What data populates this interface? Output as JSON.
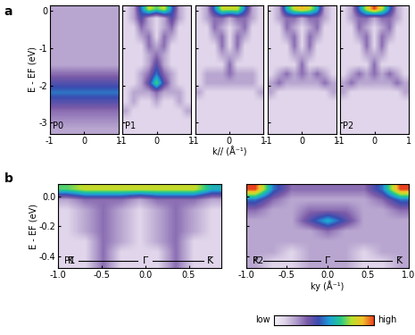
{
  "chart_data": [
    {
      "type": "heatmap",
      "panel": "a",
      "annotation": "P0",
      "ylabel": "E - EF (eV)",
      "xlim": [
        -1,
        1
      ],
      "ylim": [
        -3.3,
        0.15
      ],
      "xticks": [
        -1,
        0,
        1
      ],
      "yticks": [
        -3,
        -2,
        -1,
        0
      ],
      "cells": [
        [
          2,
          2,
          2,
          2,
          2,
          2,
          2,
          2,
          2
        ],
        [
          2,
          2,
          2,
          2,
          2,
          2,
          2,
          2,
          2
        ],
        [
          2,
          2,
          2,
          2,
          2,
          2,
          2,
          2,
          2
        ],
        [
          2,
          2,
          2,
          2,
          2,
          2,
          2,
          2,
          2
        ],
        [
          2,
          2,
          2,
          2,
          2,
          2,
          2,
          2,
          2
        ],
        [
          2,
          2,
          2,
          2,
          2,
          2,
          2,
          2,
          2
        ],
        [
          2,
          2,
          2,
          2,
          2,
          2,
          2,
          2,
          2
        ],
        [
          3,
          3,
          3,
          3,
          3,
          3,
          3,
          3,
          3
        ],
        [
          4,
          4,
          4,
          4,
          4,
          4,
          4,
          4,
          4
        ],
        [
          5,
          5,
          5,
          5,
          5,
          5,
          5,
          5,
          5
        ],
        [
          4,
          4,
          4,
          4,
          4,
          4,
          4,
          4,
          4
        ],
        [
          3,
          3,
          3,
          3,
          3,
          3,
          3,
          3,
          3
        ],
        [
          2.5,
          2.5,
          2.5,
          2.5,
          2.5,
          2.5,
          2.5,
          2.5,
          2.5
        ],
        [
          2,
          2,
          2,
          2,
          2,
          2,
          2,
          2,
          2
        ]
      ]
    },
    {
      "type": "heatmap",
      "panel": "a",
      "annotation": "P1",
      "tick_labels": "x",
      "xlim": [
        -1,
        1
      ],
      "ylim": [
        -3.3,
        0.15
      ],
      "xticks": [
        -1,
        0,
        1
      ],
      "yticks": [
        -3,
        -2,
        -1,
        0
      ],
      "cells": [
        [
          1,
          2,
          5,
          8,
          7,
          8,
          5,
          2,
          1
        ],
        [
          1,
          2,
          4,
          2,
          1,
          2,
          4,
          2,
          1
        ],
        [
          1,
          1,
          3,
          2,
          1,
          2,
          3,
          1,
          1
        ],
        [
          1,
          1,
          2,
          3,
          1,
          3,
          2,
          1,
          1
        ],
        [
          1,
          1,
          1,
          3,
          2,
          3,
          1,
          1,
          1
        ],
        [
          1,
          1,
          1,
          2,
          3,
          2,
          1,
          1,
          1
        ],
        [
          1,
          1,
          1,
          2,
          4,
          2,
          1,
          1,
          1
        ],
        [
          1,
          1,
          2,
          3,
          5,
          3,
          2,
          1,
          1
        ],
        [
          1,
          1,
          2,
          4,
          7,
          4,
          2,
          1,
          1
        ],
        [
          1,
          2,
          2,
          2,
          3,
          2,
          2,
          2,
          1
        ],
        [
          1,
          2,
          1,
          1,
          2,
          1,
          1,
          2,
          1
        ],
        [
          2,
          1,
          1,
          1,
          1,
          1,
          1,
          1,
          2
        ],
        [
          1,
          1,
          1,
          1,
          1,
          1,
          1,
          1,
          1
        ],
        [
          1,
          1,
          1,
          1,
          1,
          1,
          1,
          1,
          1
        ]
      ]
    },
    {
      "type": "heatmap",
      "panel": "a",
      "xlabel": "k// (Å⁻¹)",
      "tick_labels": "x",
      "xlim": [
        -1,
        1
      ],
      "ylim": [
        -3.3,
        0.15
      ],
      "xticks": [
        -1,
        0,
        1
      ],
      "yticks": [
        -3,
        -2,
        -1,
        0
      ],
      "cells": [
        [
          1,
          2,
          5,
          8,
          8,
          8,
          5,
          2,
          1
        ],
        [
          1,
          2,
          3,
          3,
          2,
          3,
          3,
          2,
          1
        ],
        [
          1,
          1,
          3,
          2,
          1,
          2,
          3,
          1,
          1
        ],
        [
          1,
          1,
          2,
          3,
          1,
          3,
          2,
          1,
          1
        ],
        [
          1,
          1,
          1,
          3,
          1,
          3,
          1,
          1,
          1
        ],
        [
          1,
          1,
          1,
          2,
          2,
          2,
          1,
          1,
          1
        ],
        [
          1,
          1,
          1,
          1,
          3,
          1,
          1,
          1,
          1
        ],
        [
          1,
          2,
          2,
          2,
          3,
          2,
          2,
          2,
          1
        ],
        [
          1,
          2,
          2,
          2,
          2,
          2,
          2,
          2,
          1
        ],
        [
          2,
          1,
          1,
          1,
          1,
          1,
          1,
          1,
          2
        ],
        [
          1,
          1,
          1,
          1,
          1,
          1,
          1,
          1,
          1
        ],
        [
          1,
          1,
          1,
          1,
          1,
          1,
          1,
          1,
          1
        ],
        [
          1,
          1,
          1,
          1,
          1,
          1,
          1,
          1,
          1
        ],
        [
          1,
          1,
          1,
          1,
          1,
          1,
          1,
          1,
          1
        ]
      ]
    },
    {
      "type": "heatmap",
      "panel": "a",
      "tick_labels": "x",
      "xlim": [
        -1,
        1
      ],
      "ylim": [
        -3.3,
        0.15
      ],
      "xticks": [
        -1,
        0,
        1
      ],
      "yticks": [
        -3,
        -2,
        -1,
        0
      ],
      "cells": [
        [
          1,
          2,
          6,
          8,
          9,
          8,
          6,
          2,
          1
        ],
        [
          1,
          2,
          3,
          3,
          2,
          3,
          3,
          2,
          1
        ],
        [
          1,
          1,
          3,
          2,
          1,
          2,
          3,
          1,
          1
        ],
        [
          1,
          1,
          2,
          3,
          1,
          3,
          2,
          1,
          1
        ],
        [
          1,
          1,
          1,
          3,
          1,
          3,
          1,
          1,
          1
        ],
        [
          1,
          1,
          1,
          2,
          2,
          2,
          1,
          1,
          1
        ],
        [
          1,
          1,
          1,
          1,
          3,
          1,
          1,
          1,
          1
        ],
        [
          1,
          2,
          3,
          2,
          3,
          2,
          3,
          2,
          1
        ],
        [
          2,
          3,
          2,
          2,
          2,
          2,
          2,
          3,
          2
        ],
        [
          2,
          1,
          1,
          1,
          1,
          1,
          1,
          1,
          2
        ],
        [
          1,
          1,
          1,
          1,
          1,
          1,
          1,
          1,
          1
        ],
        [
          1,
          1,
          1,
          1,
          1,
          1,
          1,
          1,
          1
        ],
        [
          1,
          1,
          1,
          1,
          1,
          1,
          1,
          1,
          1
        ],
        [
          1,
          1,
          1,
          1,
          1,
          1,
          1,
          1,
          1
        ]
      ]
    },
    {
      "type": "heatmap",
      "panel": "a",
      "annotation": "P2",
      "tick_labels": "x",
      "xlim": [
        -1,
        1
      ],
      "ylim": [
        -3.3,
        0.15
      ],
      "xticks": [
        -1,
        0,
        1
      ],
      "yticks": [
        -3,
        -2,
        -1,
        0
      ],
      "cells": [
        [
          1,
          2,
          5,
          8,
          10,
          8,
          5,
          2,
          1
        ],
        [
          1,
          2,
          3,
          3,
          2,
          3,
          3,
          2,
          1
        ],
        [
          1,
          1,
          3,
          2,
          1,
          2,
          3,
          1,
          1
        ],
        [
          1,
          1,
          2,
          3,
          1,
          3,
          2,
          1,
          1
        ],
        [
          1,
          1,
          1,
          3,
          1,
          3,
          1,
          1,
          1
        ],
        [
          1,
          1,
          1,
          2,
          2,
          2,
          1,
          1,
          1
        ],
        [
          1,
          1,
          1,
          1,
          3,
          1,
          1,
          1,
          1
        ],
        [
          1,
          2,
          3,
          2,
          3,
          2,
          3,
          2,
          1
        ],
        [
          2,
          3,
          2,
          2,
          2,
          2,
          2,
          3,
          2
        ],
        [
          2,
          1,
          1,
          1,
          1,
          1,
          1,
          1,
          2
        ],
        [
          1,
          1,
          1,
          1,
          1,
          1,
          1,
          1,
          1
        ],
        [
          1,
          1,
          1,
          1,
          1,
          1,
          1,
          1,
          1
        ],
        [
          1,
          1,
          1,
          1,
          1,
          1,
          1,
          1,
          1
        ],
        [
          1,
          1,
          1,
          1,
          1,
          1,
          1,
          1,
          1
        ]
      ]
    },
    {
      "type": "heatmap",
      "panel": "b",
      "annotation": "P1",
      "ylabel": "E - EF (eV)",
      "xlim": [
        -1.0,
        0.87
      ],
      "ylim": [
        -0.48,
        0.08
      ],
      "xticks": [
        -1.0,
        -0.5,
        0.0,
        0.5
      ],
      "yticks": [
        -0.4,
        -0.2,
        0.0
      ],
      "symmetry_points": [
        {
          "label": "K̄",
          "x": -0.85
        },
        {
          "label": "Γ̄",
          "x": 0.0
        },
        {
          "label": "K̄",
          "x": 0.75
        }
      ],
      "symmetry_y": -0.43,
      "cells": [
        [
          7,
          8,
          8,
          8,
          8,
          8,
          8,
          8,
          6
        ],
        [
          2,
          3,
          3,
          3,
          2,
          3,
          3,
          3,
          2
        ],
        [
          1,
          2,
          3,
          2,
          1,
          2,
          3,
          2,
          1
        ],
        [
          1,
          2,
          3,
          2,
          1,
          2,
          3,
          2,
          1
        ],
        [
          1,
          2,
          3,
          2,
          1,
          2,
          3,
          2,
          1
        ],
        [
          1,
          1,
          3,
          2,
          1,
          2,
          3,
          1,
          1
        ],
        [
          1,
          1,
          3,
          1,
          1,
          1,
          3,
          1,
          1
        ],
        [
          1,
          1,
          3,
          1,
          1,
          1,
          3,
          1,
          1
        ]
      ]
    },
    {
      "type": "heatmap",
      "panel": "b",
      "annotation": "P2",
      "xlabel": "ky (Å⁻¹)",
      "tick_labels": "x",
      "xlim": [
        -1.0,
        1.0
      ],
      "ylim": [
        -0.48,
        0.08
      ],
      "xticks": [
        -1.0,
        -0.5,
        0.0,
        0.5,
        1.0
      ],
      "yticks": [
        -0.4,
        -0.2,
        0.0
      ],
      "symmetry_points": [
        {
          "label": "K̄",
          "x": -0.88
        },
        {
          "label": "Γ̄",
          "x": 0.0
        },
        {
          "label": "K̄",
          "x": 0.88
        }
      ],
      "symmetry_y": -0.43,
      "cells": [
        [
          10,
          5,
          3,
          3,
          3,
          3,
          3,
          5,
          10
        ],
        [
          5,
          3,
          2,
          2,
          2,
          2,
          2,
          3,
          5
        ],
        [
          3,
          2,
          2,
          3,
          3,
          3,
          2,
          2,
          3
        ],
        [
          2,
          2,
          2,
          4,
          6,
          4,
          2,
          2,
          2
        ],
        [
          2,
          2,
          2,
          2,
          3,
          2,
          2,
          2,
          2
        ],
        [
          2,
          2,
          2,
          2,
          2,
          2,
          2,
          2,
          2
        ],
        [
          2,
          2,
          1,
          2,
          2,
          2,
          1,
          2,
          2
        ],
        [
          2,
          1,
          1,
          2,
          2,
          2,
          1,
          1,
          2
        ]
      ]
    }
  ],
  "panel_labels": [
    "a",
    "b"
  ],
  "colorbar": {
    "range": [
      0,
      10
    ],
    "labels": [
      "low",
      "high"
    ]
  }
}
